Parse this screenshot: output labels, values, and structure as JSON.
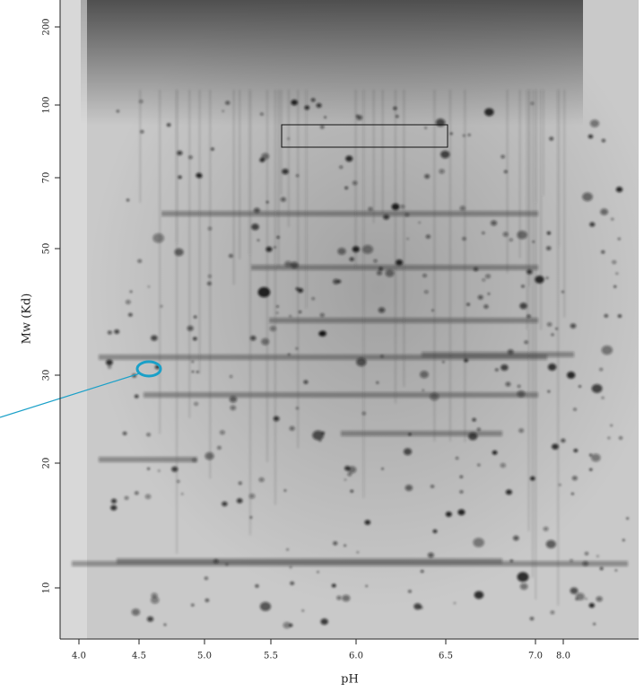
{
  "figure": {
    "x_label": "pH",
    "y_label": "Mw (Kd)",
    "x_ticks": [
      "4.0",
      "4.5",
      "5.0",
      "5.5",
      "6.0",
      "6.5",
      "7.0",
      "8.0"
    ],
    "y_ticks": [
      "200",
      "100",
      "70",
      "50",
      "30",
      "20",
      "10"
    ]
  }
}
